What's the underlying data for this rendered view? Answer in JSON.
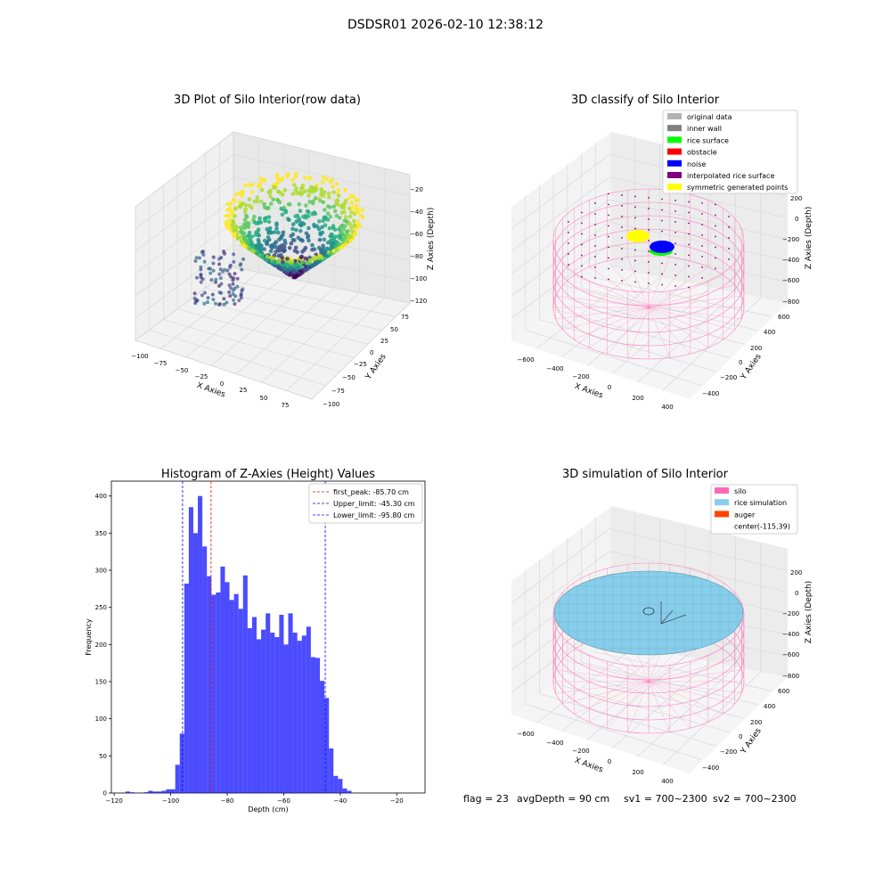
{
  "suptitle": "DSDSR01 2026-02-10 12:38:12",
  "footer": {
    "flag": "flag = 23",
    "avg_depth": "avgDepth = 90 cm",
    "sv1": "sv1 = 700~2300",
    "sv2": "sv2 = 700~2300"
  },
  "chart_data": [
    {
      "type": "scatter",
      "title": "3D Plot of Silo Interior(row data)",
      "xlabel": "X Axies",
      "ylabel": "Y Axies",
      "zlabel": "Z Axies (Depth)",
      "x_ticks": [
        "−100",
        "−75",
        "−50",
        "−25",
        "0",
        "25",
        "50",
        "75"
      ],
      "y_ticks": [
        "−100",
        "−75",
        "−50",
        "−25",
        "0",
        "25",
        "50",
        "75"
      ],
      "z_ticks": [
        "−120",
        "−100",
        "−80",
        "−60",
        "−40",
        "−20"
      ],
      "xlim": [
        -110,
        85
      ],
      "ylim": [
        -110,
        85
      ],
      "zlim": [
        -125,
        -10
      ],
      "colormap": "viridis",
      "note": "bowl-shaped point cloud; depth from about -120 (center) to -15 (rim)"
    },
    {
      "type": "scatter",
      "title": "3D classify of Silo Interior",
      "xlabel": "X Axies",
      "ylabel": "Y Axies",
      "zlabel": "Z Axies (Depth)",
      "x_ticks": [
        "−600",
        "−400",
        "−200",
        "0",
        "200",
        "400"
      ],
      "y_ticks": [
        "−400",
        "−200",
        "0",
        "200",
        "400",
        "600"
      ],
      "z_ticks": [
        "−800",
        "−600",
        "−400",
        "−200",
        "0",
        "200"
      ],
      "legend_position": "top-right",
      "legend": [
        {
          "label": "original data",
          "color": "#b3b3b3"
        },
        {
          "label": "inner wall",
          "color": "#808080"
        },
        {
          "label": "rice surface",
          "color": "#00ff00"
        },
        {
          "label": "obstacle",
          "color": "#ff0000"
        },
        {
          "label": "noise",
          "color": "#0000ff"
        },
        {
          "label": "interpolated rice surface",
          "color": "#800080"
        },
        {
          "label": "symmetric generated points",
          "color": "#ffff00"
        }
      ],
      "wireframe_color": "#ff69b4"
    },
    {
      "type": "bar",
      "title": "Histogram of Z-Axies (Height) Values",
      "xlabel": "Depth (cm)",
      "ylabel": "Frequency",
      "xlim": [
        -121,
        -10
      ],
      "ylim": [
        0,
        420
      ],
      "x_ticks": [
        -120,
        -100,
        -80,
        -60,
        -40,
        -20
      ],
      "x_tick_labels": [
        "−120",
        "−100",
        "−80",
        "−60",
        "−40",
        "−20"
      ],
      "y_ticks": [
        0,
        50,
        100,
        150,
        200,
        250,
        300,
        350,
        400
      ],
      "y_tick_labels": [
        "0",
        "50",
        "100",
        "150",
        "200",
        "250",
        "300",
        "350",
        "400"
      ],
      "bar_color": "#0000ff",
      "bin_start": -116,
      "bin_width": 1.6,
      "values": [
        2,
        1,
        0,
        0,
        1,
        3,
        2,
        2,
        3,
        5,
        5,
        38,
        80,
        282,
        385,
        350,
        400,
        332,
        292,
        267,
        270,
        305,
        284,
        260,
        268,
        248,
        293,
        222,
        237,
        207,
        220,
        242,
        216,
        210,
        240,
        200,
        242,
        216,
        205,
        212,
        224,
        183,
        182,
        151,
        128,
        60,
        23,
        19,
        6,
        3
      ],
      "lines": [
        {
          "label": "first_peak: -85.70 cm",
          "x": -85.7,
          "color": "#ff0000"
        },
        {
          "label": "Upper_limit: -45.30 cm",
          "x": -45.3,
          "color": "#0000ff"
        },
        {
          "label": "Lower_limit: -95.80 cm",
          "x": -95.8,
          "color": "#0000ff"
        }
      ],
      "legend_position": "top-right"
    },
    {
      "type": "scatter",
      "title": "3D simulation of Silo Interior",
      "xlabel": "X Axies",
      "ylabel": "Y Axies",
      "zlabel": "Z Axies (Depth)",
      "x_ticks": [
        "−600",
        "−400",
        "−200",
        "0",
        "200",
        "400"
      ],
      "y_ticks": [
        "−400",
        "−200",
        "0",
        "200",
        "400",
        "600"
      ],
      "z_ticks": [
        "−800",
        "−600",
        "−400",
        "−200",
        "0",
        "200"
      ],
      "legend_position": "top-right",
      "legend": [
        {
          "label": "silo",
          "color": "#ff69b4"
        },
        {
          "label": "rice simulation",
          "color": "#87ceeb"
        },
        {
          "label": "auger",
          "color": "#ff4500"
        },
        {
          "label": "center(-115,39)",
          "color": ""
        }
      ]
    }
  ]
}
